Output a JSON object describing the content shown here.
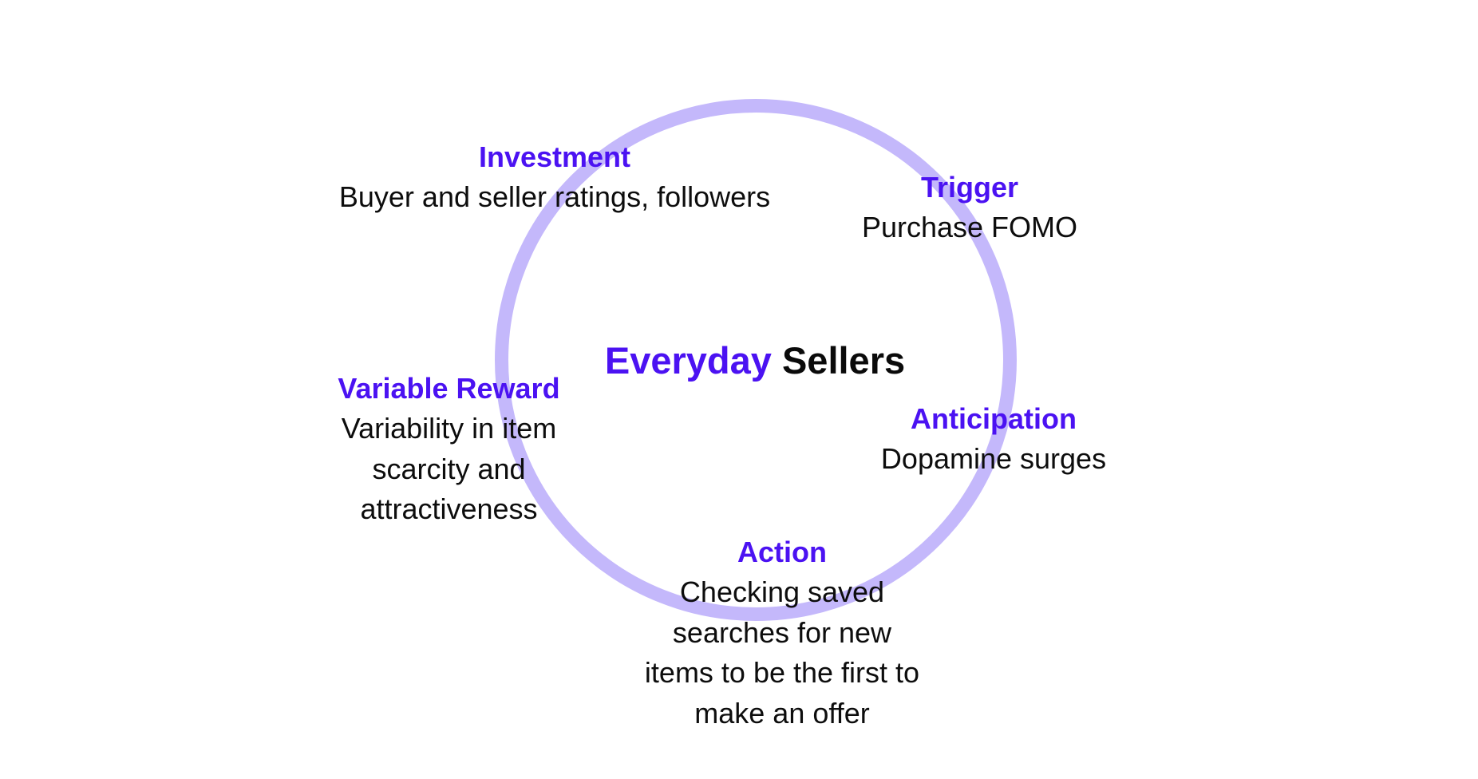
{
  "diagram": {
    "center": {
      "accent_word": "Everyday",
      "word": "Sellers"
    },
    "stages": {
      "investment": {
        "title": "Investment",
        "description": "Buyer and seller ratings, followers"
      },
      "trigger": {
        "title": "Trigger",
        "description": "Purchase FOMO"
      },
      "anticipation": {
        "title": "Anticipation",
        "description": "Dopamine surges"
      },
      "action": {
        "title": "Action",
        "lines": [
          "Checking saved",
          "searches for new",
          "items to be the first to",
          "make an offer"
        ]
      },
      "variable_reward": {
        "title": "Variable Reward",
        "lines": [
          "Variability in item",
          "scarcity and",
          "attractiveness"
        ]
      }
    },
    "colors": {
      "accent": "#4b12f2",
      "ring": "#c4b8fb",
      "text": "#0d0d0d",
      "background": "#ffffff"
    }
  }
}
